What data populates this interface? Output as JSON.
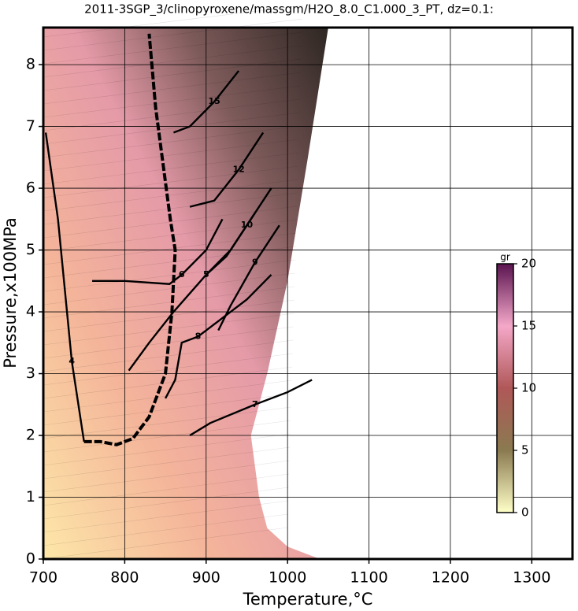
{
  "chart_data": {
    "type": "contour",
    "title": "2011-3SGP_3/clinopyroxene/massgm/H2O_8.0_C1.000_3_PT, dz=0.1:",
    "x_label": "Temperature,°C",
    "y_label": "Pressure,x100MPa",
    "xlim": [
      700,
      1350
    ],
    "xticks": [
      700,
      800,
      900,
      1000,
      1100,
      1200,
      1300
    ],
    "ylim": [
      0,
      8.6
    ],
    "yticks": [
      0,
      1,
      2,
      3,
      4,
      5,
      6,
      7,
      8
    ],
    "grid": true,
    "domain": {
      "x": [
        700,
        1040,
        1000,
        975,
        965,
        955,
        975,
        1000,
        1025,
        1050,
        700
      ],
      "y": [
        0,
        0,
        0.2,
        0.5,
        1.0,
        2.0,
        3.0,
        4.5,
        6.5,
        8.6,
        8.6
      ]
    },
    "boundary": {
      "x": [
        750,
        770,
        790,
        810,
        830,
        850,
        858,
        862,
        856,
        848,
        838,
        830
      ],
      "y": [
        1.9,
        1.9,
        1.85,
        1.95,
        2.3,
        3.0,
        4.0,
        5.0,
        5.5,
        6.3,
        7.3,
        8.5
      ]
    },
    "contours": [
      {
        "level": 4,
        "x": [
          703,
          718,
          735,
          750
        ],
        "y": [
          6.9,
          5.5,
          3.2,
          1.9
        ]
      },
      {
        "level": 5,
        "x": [
          805,
          830,
          860,
          900,
          930,
          960
        ],
        "y": [
          3.05,
          3.5,
          4.0,
          4.6,
          5.0,
          5.6
        ]
      },
      {
        "level": 6,
        "x": [
          760,
          800,
          855,
          870,
          900,
          920
        ],
        "y": [
          4.5,
          4.5,
          4.45,
          4.6,
          5.0,
          5.5
        ]
      },
      {
        "level": 7,
        "x": [
          880,
          905,
          960,
          1000,
          1030
        ],
        "y": [
          2.0,
          2.2,
          2.5,
          2.7,
          2.9
        ]
      },
      {
        "level": 8,
        "x": [
          850,
          862,
          870,
          890,
          920,
          950,
          980
        ],
        "y": [
          2.6,
          2.9,
          3.5,
          3.6,
          3.9,
          4.2,
          4.6
        ]
      },
      {
        "level": 9,
        "x": [
          915,
          930,
          960,
          990
        ],
        "y": [
          3.7,
          4.1,
          4.8,
          5.4
        ]
      },
      {
        "level": 10,
        "x": [
          900,
          925,
          950,
          980
        ],
        "y": [
          4.6,
          4.9,
          5.4,
          6.0
        ]
      },
      {
        "level": 12,
        "x": [
          880,
          910,
          940,
          970
        ],
        "y": [
          5.7,
          5.8,
          6.3,
          6.9
        ]
      },
      {
        "level": 15,
        "x": [
          860,
          880,
          910,
          940
        ],
        "y": [
          6.9,
          7.0,
          7.4,
          7.9
        ]
      }
    ],
    "colorbar": {
      "label": "gr",
      "lim": [
        0,
        20
      ],
      "ticks": [
        0,
        5,
        10,
        15,
        20
      ]
    }
  }
}
